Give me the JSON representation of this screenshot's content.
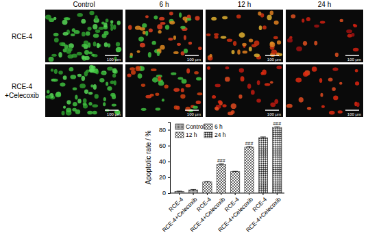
{
  "image_grid": {
    "columns": [
      "Control",
      "6 h",
      "12 h",
      "24 h"
    ],
    "rows": [
      [
        "RCE-4"
      ],
      [
        "RCE-4",
        "+Celecoxib"
      ]
    ],
    "scale_bar": "100 μm"
  },
  "chart_data": {
    "type": "bar",
    "categories": [
      "RCE-4",
      "RCE-4+Celecoxib",
      "RCE-4",
      "RCE-4+Celecoxib",
      "RCE-4",
      "RCE-4+Celecoxib",
      "RCE-4",
      "RCE-4+Celecoxib"
    ],
    "series": [
      {
        "name": "Control",
        "color": "#505050",
        "values": [
          2,
          4,
          null,
          null,
          null,
          null,
          null,
          null
        ],
        "errors": [
          0.5,
          0.8,
          null,
          null,
          null,
          null,
          null,
          null
        ]
      },
      {
        "name": "6 h",
        "color": "#606060",
        "values": [
          null,
          null,
          14,
          36,
          null,
          null,
          null,
          null
        ],
        "errors": [
          null,
          null,
          0.6,
          1.2,
          null,
          null,
          null,
          null
        ]
      },
      {
        "name": "12 h",
        "color": "#404040",
        "values": [
          null,
          null,
          null,
          null,
          27,
          58,
          null,
          null
        ],
        "errors": [
          null,
          null,
          null,
          null,
          0.5,
          1.0,
          null,
          null
        ]
      },
      {
        "name": "24 h",
        "color": "#303030",
        "values": [
          null,
          null,
          null,
          null,
          null,
          null,
          70,
          83
        ],
        "errors": [
          null,
          null,
          null,
          null,
          null,
          null,
          1.0,
          0.8
        ]
      }
    ],
    "stacked": true,
    "legend": "upper-left",
    "y_label": "Apoptotic rate / %",
    "ylim": [
      0,
      90
    ],
    "yticks": [
      0,
      20,
      40,
      60,
      80
    ],
    "annotations": [
      {
        "text": "###",
        "x": 3
      },
      {
        "text": "###",
        "x": 5
      },
      {
        "text": "###",
        "x": 7
      }
    ]
  }
}
